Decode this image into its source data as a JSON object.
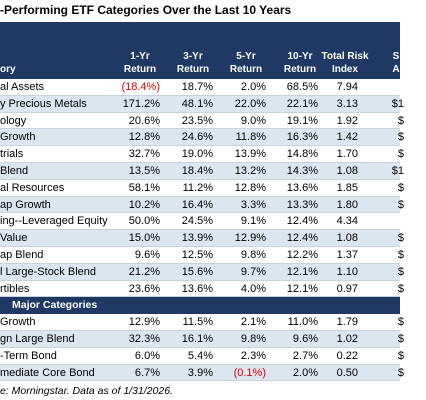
{
  "title": "-Performing ETF Categories Over the Last 10 Years",
  "table": {
    "header": [
      [
        "ory"
      ],
      [
        "1-Yr",
        "Return"
      ],
      [
        "3-Yr",
        "Return"
      ],
      [
        "5-Yr",
        "Return"
      ],
      [
        "10-Yr",
        "Return"
      ],
      [
        "Total Risk",
        "Index"
      ],
      [
        "S",
        "A"
      ]
    ],
    "rows_top": [
      [
        "al Assets",
        "(18.4%)",
        "18.7%",
        "2.0%",
        "68.5%",
        "7.94",
        ""
      ],
      [
        "y Precious Metals",
        "171.2%",
        "48.1%",
        "22.0%",
        "22.1%",
        "3.13",
        "$1"
      ],
      [
        "ology",
        "20.6%",
        "23.5%",
        "9.0%",
        "19.1%",
        "1.92",
        "$"
      ],
      [
        "Growth",
        "12.8%",
        "24.6%",
        "11.8%",
        "16.3%",
        "1.42",
        "$"
      ],
      [
        "trials",
        "32.7%",
        "19.0%",
        "13.9%",
        "14.8%",
        "1.70",
        "$"
      ],
      [
        "Blend",
        "13.5%",
        "18.4%",
        "13.2%",
        "14.3%",
        "1.08",
        "$1"
      ],
      [
        "al Resources",
        "58.1%",
        "11.2%",
        "12.8%",
        "13.6%",
        "1.85",
        "$"
      ],
      [
        "ap Growth",
        "10.2%",
        "16.4%",
        "3.3%",
        "13.3%",
        "1.80",
        "$"
      ],
      [
        "ing--Leveraged Equity",
        "50.0%",
        "24.5%",
        "9.1%",
        "12.4%",
        "4.34",
        ""
      ],
      [
        "Value",
        "15.0%",
        "13.9%",
        "12.9%",
        "12.4%",
        "1.08",
        "$"
      ],
      [
        "ap Blend",
        "9.6%",
        "12.5%",
        "9.8%",
        "12.2%",
        "1.37",
        "$"
      ],
      [
        "l Large-Stock Blend",
        "21.2%",
        "15.6%",
        "9.7%",
        "12.1%",
        "1.10",
        "$"
      ],
      [
        "rtibles",
        "23.6%",
        "13.6%",
        "4.0%",
        "12.1%",
        "0.97",
        "$"
      ]
    ],
    "section": "Major Categories",
    "rows_bottom": [
      [
        "Growth",
        "12.9%",
        "11.5%",
        "2.1%",
        "11.0%",
        "1.79",
        "$"
      ],
      [
        "gn Large Blend",
        "32.3%",
        "16.1%",
        "9.8%",
        "9.6%",
        "1.02",
        "$"
      ],
      [
        "-Term Bond",
        "6.0%",
        "5.4%",
        "2.3%",
        "2.7%",
        "0.22",
        "$"
      ],
      [
        "mediate Core Bond",
        "6.7%",
        "3.9%",
        "(0.1%)",
        "2.0%",
        "0.50",
        "$"
      ]
    ]
  },
  "footer": "e: Morningstar. Data as of 1/31/2026."
}
